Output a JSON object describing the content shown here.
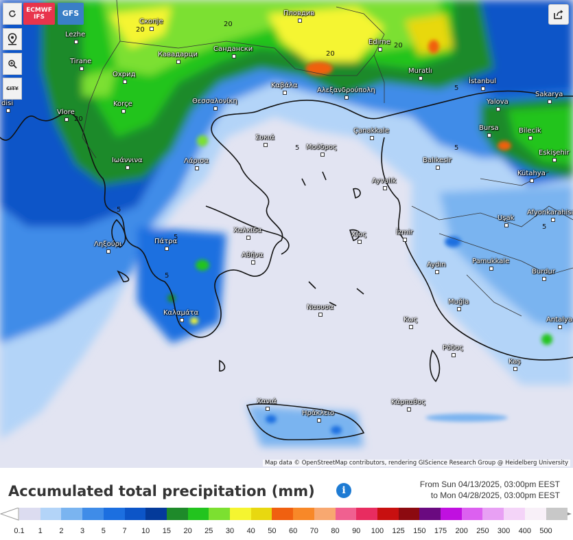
{
  "map": {
    "attribution": "Map data © OpenStreetMap contributors, rendering GIScience Research Group @ Heidelberg University",
    "controls": {
      "refresh_icon": "refresh-icon",
      "location_icon": "location-pin-icon",
      "zoom_icon": "zoom-icon",
      "city_toggle": "CITY"
    },
    "models": [
      {
        "label_line1": "ECMWF",
        "label_line2": "IFS",
        "color": "#e8344c"
      },
      {
        "label_line1": "GFS",
        "label_line2": "",
        "color": "#3a7fc6"
      }
    ],
    "share_icon": "share-icon",
    "cities": [
      {
        "name": "Скопје"
      },
      {
        "name": "Пловдив"
      },
      {
        "name": "Lezhe"
      },
      {
        "name": "Кавадарци"
      },
      {
        "name": "Сандански"
      },
      {
        "name": "Edirne"
      },
      {
        "name": "Tirane"
      },
      {
        "name": "Охрид"
      },
      {
        "name": "Muratlı"
      },
      {
        "name": "Καβάλα"
      },
      {
        "name": "Αλεξανδρούπολη"
      },
      {
        "name": "İstanbul"
      },
      {
        "name": "disi"
      },
      {
        "name": "Korçe"
      },
      {
        "name": "Θεσσαλονίκη"
      },
      {
        "name": "Yalova"
      },
      {
        "name": "Sakarya"
      },
      {
        "name": "Vlore"
      },
      {
        "name": "Çanakkale"
      },
      {
        "name": "Bursa"
      },
      {
        "name": "Bilecik"
      },
      {
        "name": "Συκιά"
      },
      {
        "name": "Μούδρος"
      },
      {
        "name": "Eskişehir"
      },
      {
        "name": "Ιωάννινα"
      },
      {
        "name": "Λάρισα"
      },
      {
        "name": "Balıkesir"
      },
      {
        "name": "Kütahya"
      },
      {
        "name": "Ayvalık"
      },
      {
        "name": "Afyonkarahisar"
      },
      {
        "name": "Uşak"
      },
      {
        "name": "Χαλκίδα"
      },
      {
        "name": "Ληξούρι"
      },
      {
        "name": "Πάτρα"
      },
      {
        "name": "Χίος"
      },
      {
        "name": "İzmir"
      },
      {
        "name": "Αθήνα"
      },
      {
        "name": "Pamukkale"
      },
      {
        "name": "Aydın"
      },
      {
        "name": "Burdur"
      },
      {
        "name": "Ναουσα"
      },
      {
        "name": "Muğla"
      },
      {
        "name": "Καλαμάτα"
      },
      {
        "name": "Κως"
      },
      {
        "name": "Antalya"
      },
      {
        "name": "Ρόδος"
      },
      {
        "name": "Kaş"
      },
      {
        "name": "Χανιά"
      },
      {
        "name": "Κάρπαθος"
      },
      {
        "name": "Ηράκλειο"
      }
    ],
    "contour_labels": [
      "20",
      "20",
      "20",
      "20",
      "20",
      "5",
      "5",
      "5",
      "5",
      "5",
      "5",
      "5"
    ]
  },
  "legend": {
    "title": "Accumulated total precipitation (mm)",
    "info_icon": "info-icon",
    "period_line1": "From Sun 04/13/2025, 03:00pm EEST",
    "period_line2": "to Mon 04/28/2025, 03:00pm EEST",
    "scale": [
      {
        "value": "0.1",
        "color": "#dcdcf0"
      },
      {
        "value": "1",
        "color": "#b3d4f8"
      },
      {
        "value": "2",
        "color": "#7ab4f0"
      },
      {
        "value": "3",
        "color": "#3f8ce8"
      },
      {
        "value": "5",
        "color": "#1c6fe0"
      },
      {
        "value": "7",
        "color": "#0c55c8"
      },
      {
        "value": "10",
        "color": "#043a9a"
      },
      {
        "value": "15",
        "color": "#1e8a2a"
      },
      {
        "value": "20",
        "color": "#22c41e"
      },
      {
        "value": "25",
        "color": "#7ce030"
      },
      {
        "value": "30",
        "color": "#f5f530"
      },
      {
        "value": "40",
        "color": "#e8d810"
      },
      {
        "value": "50",
        "color": "#f06010"
      },
      {
        "value": "60",
        "color": "#f88828"
      },
      {
        "value": "70",
        "color": "#f8a870"
      },
      {
        "value": "80",
        "color": "#f06090"
      },
      {
        "value": "90",
        "color": "#e82c60"
      },
      {
        "value": "100",
        "color": "#c81010"
      },
      {
        "value": "125",
        "color": "#8c0a10"
      },
      {
        "value": "150",
        "color": "#6a0a80"
      },
      {
        "value": "175",
        "color": "#c010e0"
      },
      {
        "value": "200",
        "color": "#dc60f0"
      },
      {
        "value": "250",
        "color": "#e8a0f4"
      },
      {
        "value": "300",
        "color": "#f4d4f8"
      },
      {
        "value": "400",
        "color": "#f8f0f8"
      },
      {
        "value": "500",
        "color": "#c8c8c8"
      }
    ]
  }
}
